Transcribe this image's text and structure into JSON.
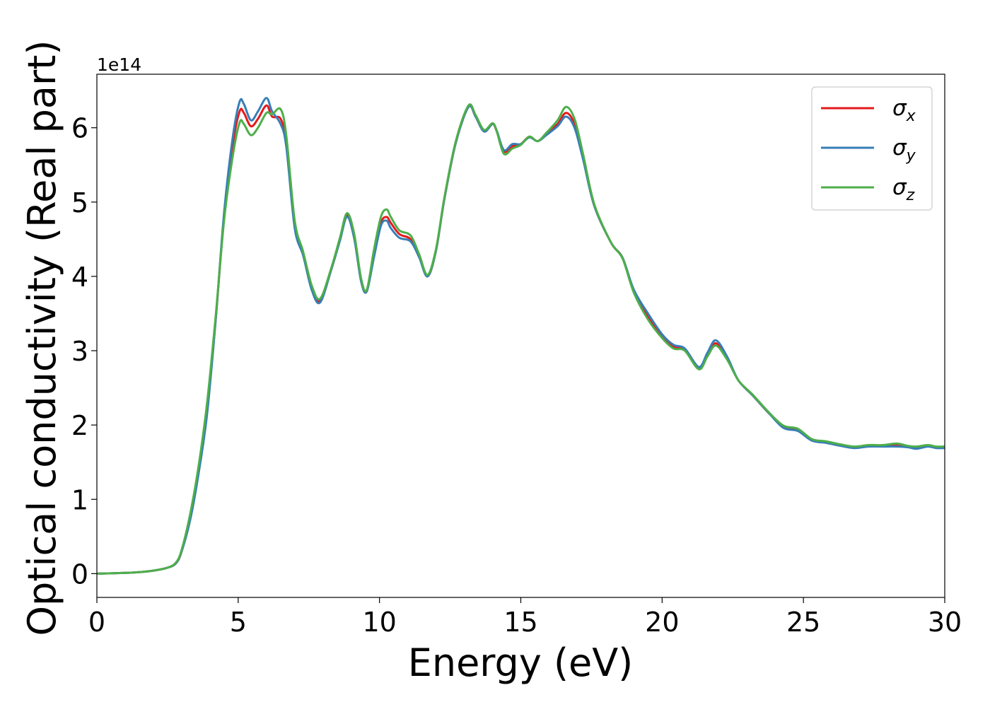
{
  "chart_data": {
    "type": "line",
    "title": "",
    "xlabel": "Energy (eV)",
    "ylabel": "Optical conductivity (Real part)",
    "y_offset_text": "1e14",
    "xlim": [
      0,
      30
    ],
    "ylim": [
      -0.32,
      6.72
    ],
    "y_scale_factor": 100000000000000.0,
    "xticks": [
      0,
      5,
      10,
      15,
      20,
      25,
      30
    ],
    "xtick_labels": [
      "0",
      "5",
      "10",
      "15",
      "20",
      "25",
      "30"
    ],
    "yticks": [
      0,
      1,
      2,
      3,
      4,
      5,
      6
    ],
    "ytick_labels": [
      "0",
      "1",
      "2",
      "3",
      "4",
      "5",
      "6"
    ],
    "grid": false,
    "legend_position": "top-right",
    "series": [
      {
        "name": "σx",
        "symbol": "σ",
        "subscript": "x",
        "color": "#e41a1c",
        "points": [
          [
            0,
            0
          ],
          [
            1,
            0.01
          ],
          [
            1.5,
            0.02
          ],
          [
            2,
            0.04
          ],
          [
            2.5,
            0.08
          ],
          [
            2.8,
            0.14
          ],
          [
            3,
            0.3
          ],
          [
            3.3,
            0.75
          ],
          [
            3.6,
            1.4
          ],
          [
            3.9,
            2.2
          ],
          [
            4.2,
            3.4
          ],
          [
            4.5,
            4.8
          ],
          [
            4.8,
            5.75
          ],
          [
            5.05,
            6.22
          ],
          [
            5.2,
            6.2
          ],
          [
            5.45,
            6.02
          ],
          [
            5.7,
            6.12
          ],
          [
            6,
            6.3
          ],
          [
            6.2,
            6.15
          ],
          [
            6.5,
            6.12
          ],
          [
            6.7,
            5.8
          ],
          [
            7,
            4.7
          ],
          [
            7.3,
            4.3
          ],
          [
            7.6,
            3.85
          ],
          [
            7.9,
            3.67
          ],
          [
            8.3,
            4.1
          ],
          [
            8.6,
            4.5
          ],
          [
            8.85,
            4.82
          ],
          [
            9.1,
            4.55
          ],
          [
            9.35,
            3.95
          ],
          [
            9.55,
            3.8
          ],
          [
            9.8,
            4.3
          ],
          [
            10.05,
            4.72
          ],
          [
            10.25,
            4.8
          ],
          [
            10.4,
            4.72
          ],
          [
            10.7,
            4.57
          ],
          [
            11.1,
            4.5
          ],
          [
            11.4,
            4.28
          ],
          [
            11.7,
            4.0
          ],
          [
            12,
            4.35
          ],
          [
            12.3,
            5.05
          ],
          [
            12.7,
            5.8
          ],
          [
            13.15,
            6.28
          ],
          [
            13.4,
            6.15
          ],
          [
            13.7,
            5.95
          ],
          [
            14,
            6.05
          ],
          [
            14.15,
            5.95
          ],
          [
            14.4,
            5.68
          ],
          [
            14.7,
            5.75
          ],
          [
            15,
            5.78
          ],
          [
            15.3,
            5.88
          ],
          [
            15.6,
            5.82
          ],
          [
            15.9,
            5.92
          ],
          [
            16.3,
            6.05
          ],
          [
            16.6,
            6.2
          ],
          [
            16.9,
            6.05
          ],
          [
            17.2,
            5.6
          ],
          [
            17.6,
            4.95
          ],
          [
            18.2,
            4.45
          ],
          [
            18.6,
            4.25
          ],
          [
            19,
            3.8
          ],
          [
            19.5,
            3.45
          ],
          [
            20,
            3.2
          ],
          [
            20.4,
            3.05
          ],
          [
            20.8,
            3.02
          ],
          [
            21.3,
            2.77
          ],
          [
            21.6,
            2.95
          ],
          [
            21.9,
            3.1
          ],
          [
            22.3,
            2.9
          ],
          [
            22.7,
            2.6
          ],
          [
            23.2,
            2.4
          ],
          [
            23.8,
            2.15
          ],
          [
            24.3,
            1.98
          ],
          [
            24.8,
            1.93
          ],
          [
            25.3,
            1.8
          ],
          [
            25.8,
            1.77
          ],
          [
            26.3,
            1.73
          ],
          [
            26.8,
            1.7
          ],
          [
            27.3,
            1.72
          ],
          [
            27.8,
            1.72
          ],
          [
            28.3,
            1.73
          ],
          [
            28.7,
            1.71
          ],
          [
            29,
            1.7
          ],
          [
            29.4,
            1.72
          ],
          [
            29.7,
            1.7
          ],
          [
            30,
            1.7
          ]
        ]
      },
      {
        "name": "σy",
        "symbol": "σ",
        "subscript": "y",
        "color": "#377eb8",
        "points": [
          [
            0,
            0
          ],
          [
            1,
            0.01
          ],
          [
            1.5,
            0.02
          ],
          [
            2,
            0.04
          ],
          [
            2.5,
            0.08
          ],
          [
            2.8,
            0.14
          ],
          [
            3,
            0.3
          ],
          [
            3.3,
            0.72
          ],
          [
            3.6,
            1.35
          ],
          [
            3.9,
            2.15
          ],
          [
            4.2,
            3.4
          ],
          [
            4.5,
            4.85
          ],
          [
            4.8,
            5.85
          ],
          [
            5.05,
            6.35
          ],
          [
            5.2,
            6.32
          ],
          [
            5.45,
            6.1
          ],
          [
            5.7,
            6.22
          ],
          [
            6,
            6.4
          ],
          [
            6.2,
            6.22
          ],
          [
            6.5,
            6.05
          ],
          [
            6.7,
            5.75
          ],
          [
            7,
            4.65
          ],
          [
            7.3,
            4.28
          ],
          [
            7.6,
            3.82
          ],
          [
            7.9,
            3.65
          ],
          [
            8.3,
            4.1
          ],
          [
            8.6,
            4.48
          ],
          [
            8.85,
            4.8
          ],
          [
            9.1,
            4.52
          ],
          [
            9.35,
            3.93
          ],
          [
            9.55,
            3.8
          ],
          [
            9.8,
            4.25
          ],
          [
            10.05,
            4.68
          ],
          [
            10.25,
            4.75
          ],
          [
            10.4,
            4.65
          ],
          [
            10.7,
            4.52
          ],
          [
            11.1,
            4.47
          ],
          [
            11.4,
            4.26
          ],
          [
            11.7,
            4.0
          ],
          [
            12,
            4.35
          ],
          [
            12.3,
            5.05
          ],
          [
            12.7,
            5.8
          ],
          [
            13.15,
            6.28
          ],
          [
            13.4,
            6.15
          ],
          [
            13.7,
            5.95
          ],
          [
            14,
            6.05
          ],
          [
            14.15,
            5.96
          ],
          [
            14.4,
            5.7
          ],
          [
            14.7,
            5.78
          ],
          [
            15,
            5.78
          ],
          [
            15.3,
            5.87
          ],
          [
            15.6,
            5.82
          ],
          [
            15.9,
            5.9
          ],
          [
            16.3,
            6.02
          ],
          [
            16.6,
            6.15
          ],
          [
            16.9,
            6.0
          ],
          [
            17.2,
            5.58
          ],
          [
            17.6,
            4.95
          ],
          [
            18.2,
            4.45
          ],
          [
            18.6,
            4.25
          ],
          [
            19,
            3.82
          ],
          [
            19.5,
            3.5
          ],
          [
            20,
            3.22
          ],
          [
            20.4,
            3.08
          ],
          [
            20.8,
            3.03
          ],
          [
            21.3,
            2.78
          ],
          [
            21.6,
            2.97
          ],
          [
            21.9,
            3.14
          ],
          [
            22.3,
            2.92
          ],
          [
            22.7,
            2.6
          ],
          [
            23.2,
            2.4
          ],
          [
            23.8,
            2.15
          ],
          [
            24.3,
            1.96
          ],
          [
            24.8,
            1.92
          ],
          [
            25.3,
            1.79
          ],
          [
            25.8,
            1.76
          ],
          [
            26.3,
            1.72
          ],
          [
            26.8,
            1.69
          ],
          [
            27.3,
            1.71
          ],
          [
            27.8,
            1.71
          ],
          [
            28.3,
            1.71
          ],
          [
            28.7,
            1.7
          ],
          [
            29,
            1.68
          ],
          [
            29.4,
            1.71
          ],
          [
            29.7,
            1.69
          ],
          [
            30,
            1.69
          ]
        ]
      },
      {
        "name": "σz",
        "symbol": "σ",
        "subscript": "z",
        "color": "#4daf4a",
        "points": [
          [
            0,
            0
          ],
          [
            1,
            0.01
          ],
          [
            1.5,
            0.02
          ],
          [
            2,
            0.04
          ],
          [
            2.5,
            0.08
          ],
          [
            2.8,
            0.15
          ],
          [
            3,
            0.32
          ],
          [
            3.3,
            0.8
          ],
          [
            3.6,
            1.45
          ],
          [
            3.9,
            2.3
          ],
          [
            4.2,
            3.45
          ],
          [
            4.5,
            4.75
          ],
          [
            4.8,
            5.6
          ],
          [
            5.05,
            6.07
          ],
          [
            5.2,
            6.05
          ],
          [
            5.45,
            5.9
          ],
          [
            5.7,
            6.0
          ],
          [
            6,
            6.2
          ],
          [
            6.2,
            6.18
          ],
          [
            6.5,
            6.25
          ],
          [
            6.7,
            5.9
          ],
          [
            7,
            4.75
          ],
          [
            7.3,
            4.33
          ],
          [
            7.6,
            3.88
          ],
          [
            7.9,
            3.7
          ],
          [
            8.3,
            4.12
          ],
          [
            8.6,
            4.52
          ],
          [
            8.85,
            4.85
          ],
          [
            9.1,
            4.58
          ],
          [
            9.35,
            3.97
          ],
          [
            9.55,
            3.82
          ],
          [
            9.8,
            4.35
          ],
          [
            10.05,
            4.8
          ],
          [
            10.25,
            4.9
          ],
          [
            10.4,
            4.8
          ],
          [
            10.7,
            4.62
          ],
          [
            11.1,
            4.55
          ],
          [
            11.4,
            4.3
          ],
          [
            11.7,
            4.02
          ],
          [
            12,
            4.37
          ],
          [
            12.3,
            5.07
          ],
          [
            12.7,
            5.82
          ],
          [
            13.15,
            6.3
          ],
          [
            13.4,
            6.17
          ],
          [
            13.7,
            5.97
          ],
          [
            14,
            6.06
          ],
          [
            14.15,
            5.95
          ],
          [
            14.4,
            5.65
          ],
          [
            14.7,
            5.72
          ],
          [
            15,
            5.77
          ],
          [
            15.3,
            5.88
          ],
          [
            15.6,
            5.82
          ],
          [
            15.9,
            5.93
          ],
          [
            16.3,
            6.1
          ],
          [
            16.6,
            6.28
          ],
          [
            16.9,
            6.12
          ],
          [
            17.2,
            5.65
          ],
          [
            17.6,
            4.97
          ],
          [
            18.2,
            4.45
          ],
          [
            18.6,
            4.24
          ],
          [
            19,
            3.78
          ],
          [
            19.5,
            3.42
          ],
          [
            20,
            3.17
          ],
          [
            20.4,
            3.03
          ],
          [
            20.8,
            3.0
          ],
          [
            21.3,
            2.75
          ],
          [
            21.6,
            2.92
          ],
          [
            21.9,
            3.07
          ],
          [
            22.3,
            2.88
          ],
          [
            22.7,
            2.6
          ],
          [
            23.2,
            2.41
          ],
          [
            23.8,
            2.16
          ],
          [
            24.3,
            1.99
          ],
          [
            24.8,
            1.95
          ],
          [
            25.3,
            1.81
          ],
          [
            25.8,
            1.78
          ],
          [
            26.3,
            1.74
          ],
          [
            26.8,
            1.71
          ],
          [
            27.3,
            1.73
          ],
          [
            27.8,
            1.73
          ],
          [
            28.3,
            1.75
          ],
          [
            28.7,
            1.72
          ],
          [
            29,
            1.71
          ],
          [
            29.4,
            1.73
          ],
          [
            29.7,
            1.71
          ],
          [
            30,
            1.71
          ]
        ]
      }
    ]
  }
}
